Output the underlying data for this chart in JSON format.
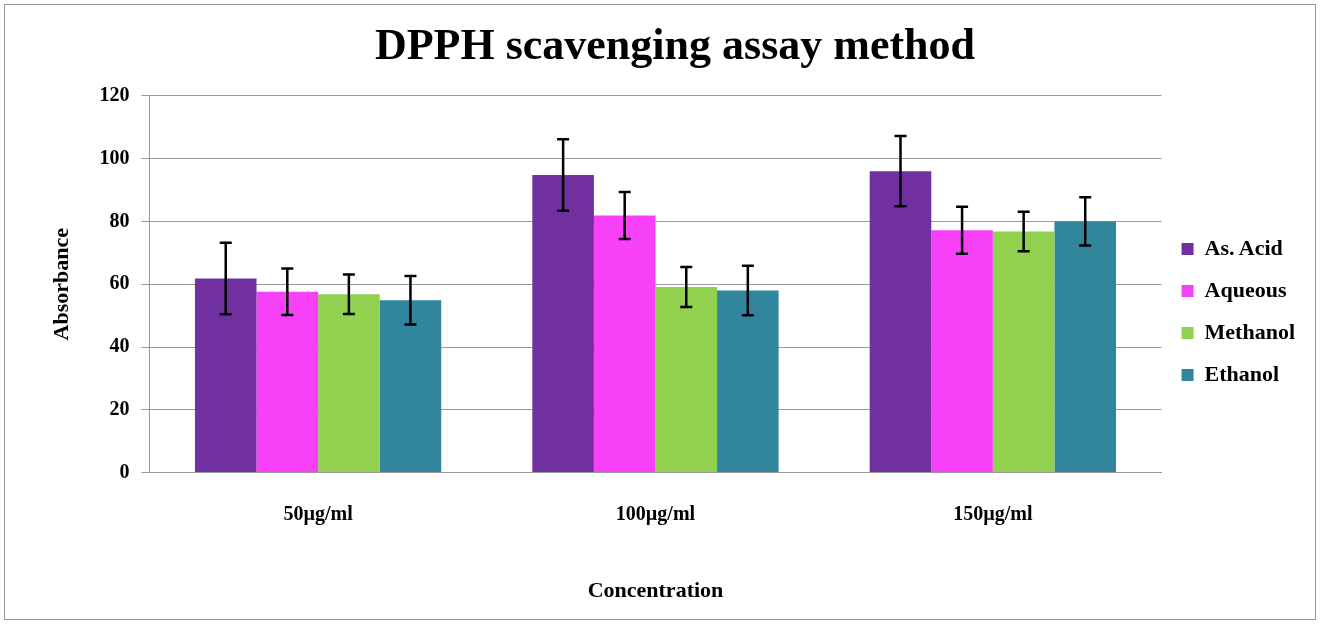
{
  "chart_data": {
    "type": "bar",
    "title": "DPPH scavenging assay method",
    "xlabel": "Concentration",
    "ylabel": "Absorbance",
    "categories": [
      "50µg/ml",
      "100µg/ml",
      "150µg/ml"
    ],
    "series": [
      {
        "name": "As. Acid",
        "color": "#7030a0",
        "values": [
          61.8,
          94.8,
          96
        ],
        "errors": [
          11.4,
          11.4,
          11.2
        ]
      },
      {
        "name": "Aqueous",
        "color": "#f740f7",
        "values": [
          57.6,
          81.9,
          77.2
        ],
        "errors": [
          7.4,
          7.5,
          7.5
        ]
      },
      {
        "name": "Methanol",
        "color": "#92d050",
        "values": [
          56.8,
          59.1,
          76.8
        ],
        "errors": [
          6.3,
          6.4,
          6.3
        ]
      },
      {
        "name": "Ethanol",
        "color": "#31859c",
        "values": [
          54.9,
          58,
          80
        ],
        "errors": [
          7.7,
          7.9,
          7.7
        ]
      }
    ],
    "ylim": [
      0,
      120
    ],
    "yticks": [
      0,
      20,
      40,
      60,
      80,
      100,
      120
    ],
    "grid": "y",
    "legend": "right"
  }
}
